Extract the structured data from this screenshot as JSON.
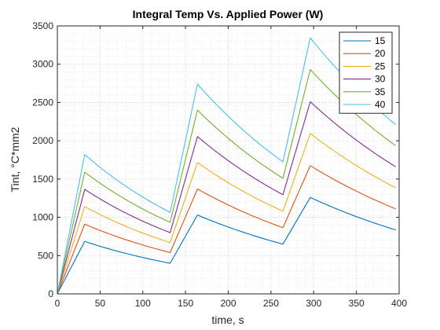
{
  "chart_data": {
    "type": "line",
    "title": "Integral Temp Vs. Applied Power (W)",
    "xlabel": "time, s",
    "ylabel": "Tint, °C*mm2",
    "xlim": [
      0,
      400
    ],
    "ylim": [
      0,
      3500
    ],
    "xticks": [
      "0",
      "50",
      "100",
      "150",
      "200",
      "250",
      "300",
      "350",
      "400"
    ],
    "yticks": [
      "0",
      "500",
      "1000",
      "1500",
      "2000",
      "2500",
      "3000",
      "3500"
    ],
    "grid": "on (major and minor, dotted)",
    "legend_position": "top-right",
    "x": [
      0,
      32,
      132,
      164,
      264,
      296,
      396
    ],
    "series": [
      {
        "name": "15",
        "color": "#0072BD",
        "values": [
          0,
          685,
          400,
          1030,
          650,
          1260,
          835
        ]
      },
      {
        "name": "20",
        "color": "#D95319",
        "values": [
          0,
          910,
          540,
          1370,
          865,
          1675,
          1110
        ]
      },
      {
        "name": "25",
        "color": "#EDB120",
        "values": [
          0,
          1140,
          670,
          1715,
          1080,
          2095,
          1385
        ]
      },
      {
        "name": "30",
        "color": "#7E2F8E",
        "values": [
          0,
          1365,
          800,
          2055,
          1295,
          2510,
          1660
        ]
      },
      {
        "name": "35",
        "color": "#77AC30",
        "values": [
          0,
          1590,
          935,
          2400,
          1510,
          2930,
          1935
        ]
      },
      {
        "name": "40",
        "color": "#4DBEEE",
        "values": [
          0,
          1820,
          1065,
          2740,
          1725,
          3345,
          2210
        ]
      }
    ]
  }
}
